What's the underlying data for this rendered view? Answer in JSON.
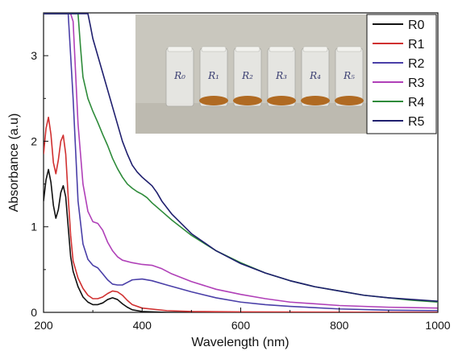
{
  "chart_data": {
    "type": "line",
    "xlabel": "Wavelength (nm)",
    "ylabel": "Absorbance (a.u)",
    "xlim": [
      200,
      1000
    ],
    "ylim": [
      0,
      3.5
    ],
    "x_ticks": [
      200,
      400,
      600,
      800,
      1000
    ],
    "y_ticks": [
      0,
      1,
      2,
      3
    ],
    "legend_position": "top-right",
    "grid": false,
    "series": [
      {
        "name": "R0",
        "color": "#111111",
        "points": [
          [
            200,
            1.3
          ],
          [
            205,
            1.55
          ],
          [
            210,
            1.67
          ],
          [
            215,
            1.52
          ],
          [
            220,
            1.25
          ],
          [
            225,
            1.1
          ],
          [
            230,
            1.2
          ],
          [
            235,
            1.4
          ],
          [
            240,
            1.48
          ],
          [
            245,
            1.35
          ],
          [
            250,
            1.0
          ],
          [
            255,
            0.65
          ],
          [
            260,
            0.48
          ],
          [
            270,
            0.3
          ],
          [
            280,
            0.18
          ],
          [
            290,
            0.12
          ],
          [
            300,
            0.09
          ],
          [
            310,
            0.09
          ],
          [
            320,
            0.11
          ],
          [
            330,
            0.15
          ],
          [
            340,
            0.17
          ],
          [
            350,
            0.15
          ],
          [
            360,
            0.1
          ],
          [
            370,
            0.06
          ],
          [
            380,
            0.03
          ],
          [
            400,
            0.01
          ],
          [
            450,
            0.0
          ],
          [
            1000,
            0.0
          ]
        ]
      },
      {
        "name": "R1",
        "color": "#d03030",
        "points": [
          [
            200,
            1.85
          ],
          [
            205,
            2.15
          ],
          [
            210,
            2.28
          ],
          [
            215,
            2.08
          ],
          [
            220,
            1.75
          ],
          [
            225,
            1.62
          ],
          [
            230,
            1.78
          ],
          [
            235,
            2.0
          ],
          [
            240,
            2.07
          ],
          [
            245,
            1.85
          ],
          [
            250,
            1.35
          ],
          [
            255,
            0.9
          ],
          [
            260,
            0.6
          ],
          [
            270,
            0.4
          ],
          [
            280,
            0.28
          ],
          [
            290,
            0.2
          ],
          [
            300,
            0.16
          ],
          [
            310,
            0.16
          ],
          [
            320,
            0.18
          ],
          [
            330,
            0.22
          ],
          [
            340,
            0.25
          ],
          [
            350,
            0.24
          ],
          [
            360,
            0.2
          ],
          [
            370,
            0.14
          ],
          [
            380,
            0.09
          ],
          [
            400,
            0.05
          ],
          [
            450,
            0.02
          ],
          [
            500,
            0.01
          ],
          [
            600,
            0.005
          ],
          [
            1000,
            0.0
          ]
        ]
      },
      {
        "name": "R2",
        "color": "#4a3fa8",
        "points": [
          [
            200,
            3.5
          ],
          [
            250,
            3.5
          ],
          [
            255,
            3.0
          ],
          [
            260,
            2.5
          ],
          [
            265,
            1.9
          ],
          [
            270,
            1.3
          ],
          [
            280,
            0.8
          ],
          [
            290,
            0.62
          ],
          [
            300,
            0.55
          ],
          [
            310,
            0.52
          ],
          [
            320,
            0.45
          ],
          [
            330,
            0.38
          ],
          [
            340,
            0.33
          ],
          [
            350,
            0.32
          ],
          [
            360,
            0.32
          ],
          [
            370,
            0.35
          ],
          [
            380,
            0.38
          ],
          [
            400,
            0.39
          ],
          [
            420,
            0.37
          ],
          [
            450,
            0.32
          ],
          [
            500,
            0.24
          ],
          [
            550,
            0.17
          ],
          [
            600,
            0.12
          ],
          [
            650,
            0.09
          ],
          [
            700,
            0.07
          ],
          [
            800,
            0.04
          ],
          [
            900,
            0.025
          ],
          [
            1000,
            0.02
          ]
        ]
      },
      {
        "name": "R3",
        "color": "#b040b8",
        "points": [
          [
            200,
            3.5
          ],
          [
            255,
            3.5
          ],
          [
            260,
            3.4
          ],
          [
            265,
            2.8
          ],
          [
            270,
            2.2
          ],
          [
            280,
            1.5
          ],
          [
            290,
            1.18
          ],
          [
            300,
            1.06
          ],
          [
            310,
            1.04
          ],
          [
            320,
            0.96
          ],
          [
            330,
            0.82
          ],
          [
            340,
            0.72
          ],
          [
            350,
            0.65
          ],
          [
            360,
            0.61
          ],
          [
            380,
            0.58
          ],
          [
            400,
            0.56
          ],
          [
            420,
            0.55
          ],
          [
            440,
            0.51
          ],
          [
            460,
            0.45
          ],
          [
            500,
            0.36
          ],
          [
            550,
            0.27
          ],
          [
            600,
            0.21
          ],
          [
            650,
            0.16
          ],
          [
            700,
            0.12
          ],
          [
            800,
            0.08
          ],
          [
            900,
            0.06
          ],
          [
            1000,
            0.05
          ]
        ]
      },
      {
        "name": "R4",
        "color": "#2e8b3a",
        "points": [
          [
            200,
            3.5
          ],
          [
            270,
            3.5
          ],
          [
            275,
            3.1
          ],
          [
            280,
            2.75
          ],
          [
            290,
            2.5
          ],
          [
            300,
            2.35
          ],
          [
            310,
            2.22
          ],
          [
            320,
            2.08
          ],
          [
            330,
            1.95
          ],
          [
            340,
            1.8
          ],
          [
            350,
            1.68
          ],
          [
            360,
            1.58
          ],
          [
            370,
            1.5
          ],
          [
            380,
            1.45
          ],
          [
            390,
            1.41
          ],
          [
            400,
            1.38
          ],
          [
            410,
            1.34
          ],
          [
            420,
            1.28
          ],
          [
            440,
            1.18
          ],
          [
            460,
            1.08
          ],
          [
            500,
            0.9
          ],
          [
            550,
            0.72
          ],
          [
            600,
            0.58
          ],
          [
            650,
            0.46
          ],
          [
            700,
            0.37
          ],
          [
            750,
            0.3
          ],
          [
            800,
            0.25
          ],
          [
            850,
            0.2
          ],
          [
            900,
            0.17
          ],
          [
            950,
            0.14
          ],
          [
            1000,
            0.12
          ]
        ]
      },
      {
        "name": "R5",
        "color": "#1f1f6e",
        "points": [
          [
            200,
            3.5
          ],
          [
            290,
            3.5
          ],
          [
            295,
            3.35
          ],
          [
            300,
            3.2
          ],
          [
            310,
            3.0
          ],
          [
            320,
            2.8
          ],
          [
            330,
            2.6
          ],
          [
            340,
            2.4
          ],
          [
            350,
            2.2
          ],
          [
            360,
            2.0
          ],
          [
            370,
            1.85
          ],
          [
            380,
            1.72
          ],
          [
            390,
            1.64
          ],
          [
            400,
            1.58
          ],
          [
            410,
            1.53
          ],
          [
            420,
            1.48
          ],
          [
            430,
            1.4
          ],
          [
            440,
            1.3
          ],
          [
            460,
            1.15
          ],
          [
            500,
            0.92
          ],
          [
            550,
            0.72
          ],
          [
            600,
            0.57
          ],
          [
            650,
            0.46
          ],
          [
            700,
            0.37
          ],
          [
            750,
            0.3
          ],
          [
            800,
            0.25
          ],
          [
            850,
            0.2
          ],
          [
            900,
            0.17
          ],
          [
            950,
            0.15
          ],
          [
            1000,
            0.13
          ]
        ]
      }
    ],
    "inset": {
      "vial_labels": [
        "R₀",
        "R₁",
        "R₂",
        "R₃",
        "R₄",
        "R₅"
      ],
      "background_color": "#c8c6bc",
      "sediment_color": "#b06a22"
    }
  }
}
